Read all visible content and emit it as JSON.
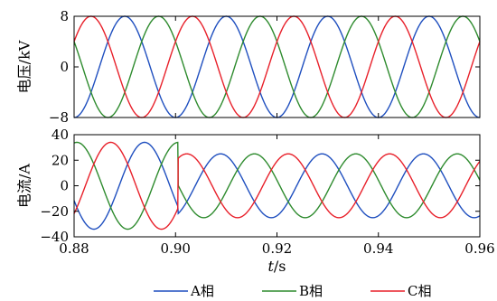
{
  "chart_data": [
    {
      "type": "line",
      "ylabel": "电压/kV",
      "xlim": [
        0.88,
        0.96
      ],
      "ylim": [
        -8,
        8
      ],
      "yticks": [
        8,
        0,
        -8
      ],
      "ytick_labels": [
        "8",
        "0",
        "−8"
      ],
      "grid": false,
      "amplitude": 8,
      "frequency_hz": 50,
      "series": [
        {
          "name": "A相",
          "color": "#1f4fbf",
          "phase_deg": -90
        },
        {
          "name": "B相",
          "color": "#2e8b2e",
          "phase_deg": 150
        },
        {
          "name": "C相",
          "color": "#e8202a",
          "phase_deg": 30
        }
      ]
    },
    {
      "type": "line",
      "ylabel": "电流/A",
      "xlabel": "t/s",
      "xlim": [
        0.88,
        0.96
      ],
      "ylim": [
        -40,
        40
      ],
      "yticks": [
        40,
        20,
        0,
        -20,
        -40
      ],
      "ytick_labels": [
        "40",
        "20",
        "0",
        "−20",
        "−40"
      ],
      "xticks": [
        0.88,
        0.9,
        0.92,
        0.94,
        0.96
      ],
      "xtick_labels": [
        "0.88",
        "0.90",
        "0.92",
        "0.94",
        "0.96"
      ],
      "grid": false,
      "frequency_hz": 50,
      "transition_time": 0.9005,
      "series": [
        {
          "name": "A相",
          "color": "#1f4fbf",
          "before": {
            "amplitude": 34,
            "phase_deg": -160
          },
          "after": {
            "amplitude": 25,
            "phase_deg": -70
          }
        },
        {
          "name": "B相",
          "color": "#2e8b2e",
          "before": {
            "amplitude": 34,
            "phase_deg": 80
          },
          "after": {
            "amplitude": 25,
            "phase_deg": 170
          }
        },
        {
          "name": "C相",
          "color": "#e8202a",
          "before": {
            "amplitude": 34,
            "phase_deg": -40
          },
          "after": {
            "amplitude": 25,
            "phase_deg": 50
          }
        }
      ]
    }
  ],
  "legend": {
    "placement": "bottom-center",
    "items": [
      {
        "label": "A相",
        "color": "#1f4fbf"
      },
      {
        "label": "B相",
        "color": "#2e8b2e"
      },
      {
        "label": "C相",
        "color": "#e8202a"
      }
    ]
  }
}
